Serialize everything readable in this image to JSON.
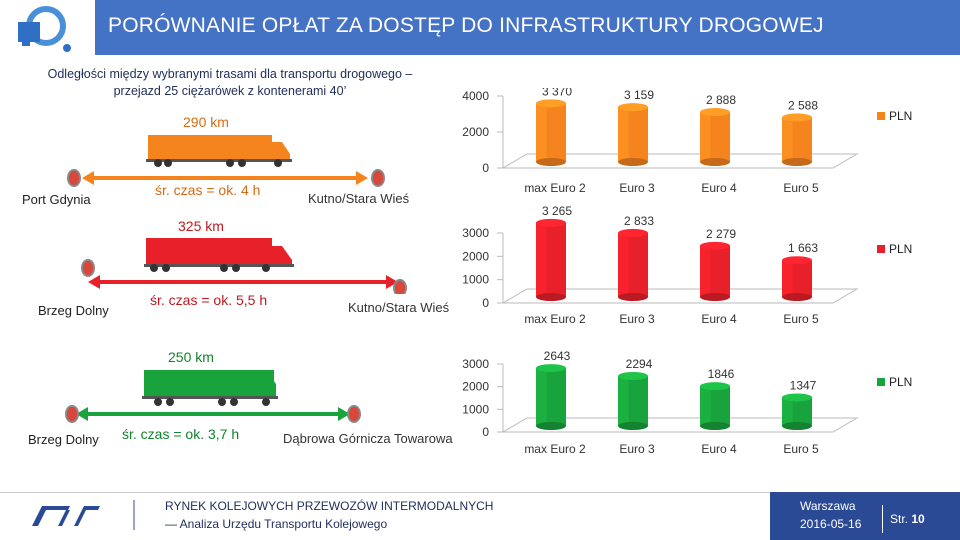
{
  "header": {
    "title": "PORÓWNANIE OPŁAT ZA DOSTĘP DO INFRASTRUKTURY DROGOWEJ"
  },
  "intro": {
    "line1": "Odległości między wybranymi trasami dla transportu drogowego –",
    "line2": "przejazd 25 ciężarówek z kontenerami 40’"
  },
  "routes": [
    {
      "from": "Port Gdynia",
      "to": "Kutno/Stara Wieś",
      "distance": "290 km",
      "time": "śr. czas = ok. 4 h",
      "color": "#f5841f"
    },
    {
      "from": "Brzeg Dolny",
      "to": "Kutno/Stara Wieś",
      "distance": "325 km",
      "time": "śr. czas = ok. 5,5 h",
      "color": "#e8202a"
    },
    {
      "from": "Brzeg Dolny",
      "to": "Dąbrowa Górnicza Towarowa",
      "distance": "250 km",
      "time": "śr. czas = ok. 3,7 h",
      "color": "#19a33c"
    }
  ],
  "chart_data": [
    {
      "type": "bar",
      "categories": [
        "max Euro 2",
        "Euro 3",
        "Euro 4",
        "Euro 5"
      ],
      "values": [
        3370,
        3159,
        2888,
        2588
      ],
      "value_labels": [
        "3 370",
        "3 159",
        "2 888",
        "2 588"
      ],
      "ylim": [
        0,
        4000
      ],
      "ticks": [
        0,
        2000,
        4000
      ],
      "legend": "PLN",
      "color": "#f5841f"
    },
    {
      "type": "bar",
      "categories": [
        "max Euro 2",
        "Euro 3",
        "Euro 4",
        "Euro 5"
      ],
      "values": [
        3265,
        2833,
        2279,
        1663
      ],
      "value_labels": [
        "3 265",
        "2 833",
        "2 279",
        "1 663"
      ],
      "ylim": [
        0,
        3000
      ],
      "ticks": [
        0,
        1000,
        2000,
        3000
      ],
      "legend": "PLN",
      "color": "#e8202a"
    },
    {
      "type": "bar",
      "categories": [
        "max Euro 2",
        "Euro 3",
        "Euro 4",
        "Euro 5"
      ],
      "values": [
        2643,
        2294,
        1846,
        1347
      ],
      "value_labels": [
        "2643",
        "2294",
        "1846",
        "1347"
      ],
      "ylim": [
        0,
        3000
      ],
      "ticks": [
        0,
        1000,
        2000,
        3000
      ],
      "legend": "PLN",
      "color": "#19a33c"
    }
  ],
  "footer": {
    "line1": "RYNEK KOLEJOWYCH PRZEWOZÓW INTERMODALNYCH",
    "line2": "— Analiza Urzędu Transportu Kolejowego",
    "city": "Warszawa",
    "date": "2016-05-16",
    "page_label": "Str.",
    "page_number": "10"
  }
}
